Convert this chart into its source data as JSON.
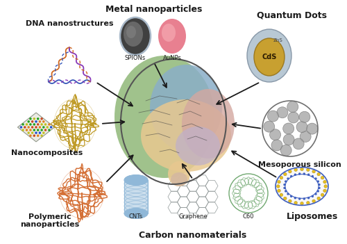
{
  "labels": {
    "metal_nanoparticles": "Metal nanoparticles",
    "dna": "DNA nanostructures",
    "quantum_dots": "Quantum Dots",
    "nanocomposites": "Nanocomposites",
    "mesoporous": "Mesoporous silicon",
    "polymeric_1": "Polymeric",
    "polymeric_2": "nanoparticles",
    "liposomes": "Liposomes",
    "carbon": "Carbon nanomaterials",
    "spions": "SPIONs",
    "aunps": "AuNPs",
    "cds": "CdS",
    "zns": "ZnS",
    "cnts": "CNTs",
    "graphene": "Graphene",
    "c60": "C60"
  },
  "colors": {
    "background": "#ffffff",
    "brain_green": "#90b878",
    "brain_blue": "#8aaec8",
    "brain_tan": "#d4b87a",
    "brain_peach": "#e8c890",
    "brain_pink": "#d4a8a0",
    "brain_lavender": "#c0b0c8",
    "brain_outline": "#555555",
    "spion_dark": "#404040",
    "spion_light": "#909090",
    "spion_ring": "#a8b8c8",
    "aunp_main": "#e88090",
    "aunp_highlight": "#f8b0b8",
    "qd_outer": "#b8c8d4",
    "qd_inner": "#c8a030",
    "nano_gold": "#b89010",
    "nano_sheet": "#c8c8c8",
    "nano_sheet_line": "#888888",
    "polymeric": "#d06020",
    "mesoporous": "#a0a0a0",
    "meso_dark": "#707070",
    "liposome_ring": "#c8c8e8",
    "liposome_blue": "#4060c0",
    "liposome_yellow": "#e8c020",
    "cnt": "#90b8d8",
    "graphene": "#909898",
    "c60": "#70a870",
    "dna_orange": "#d06820",
    "dna_blue": "#3858b8",
    "dna_purple": "#8838b8",
    "arrow": "#1a1a1a",
    "text": "#1a1a1a"
  }
}
